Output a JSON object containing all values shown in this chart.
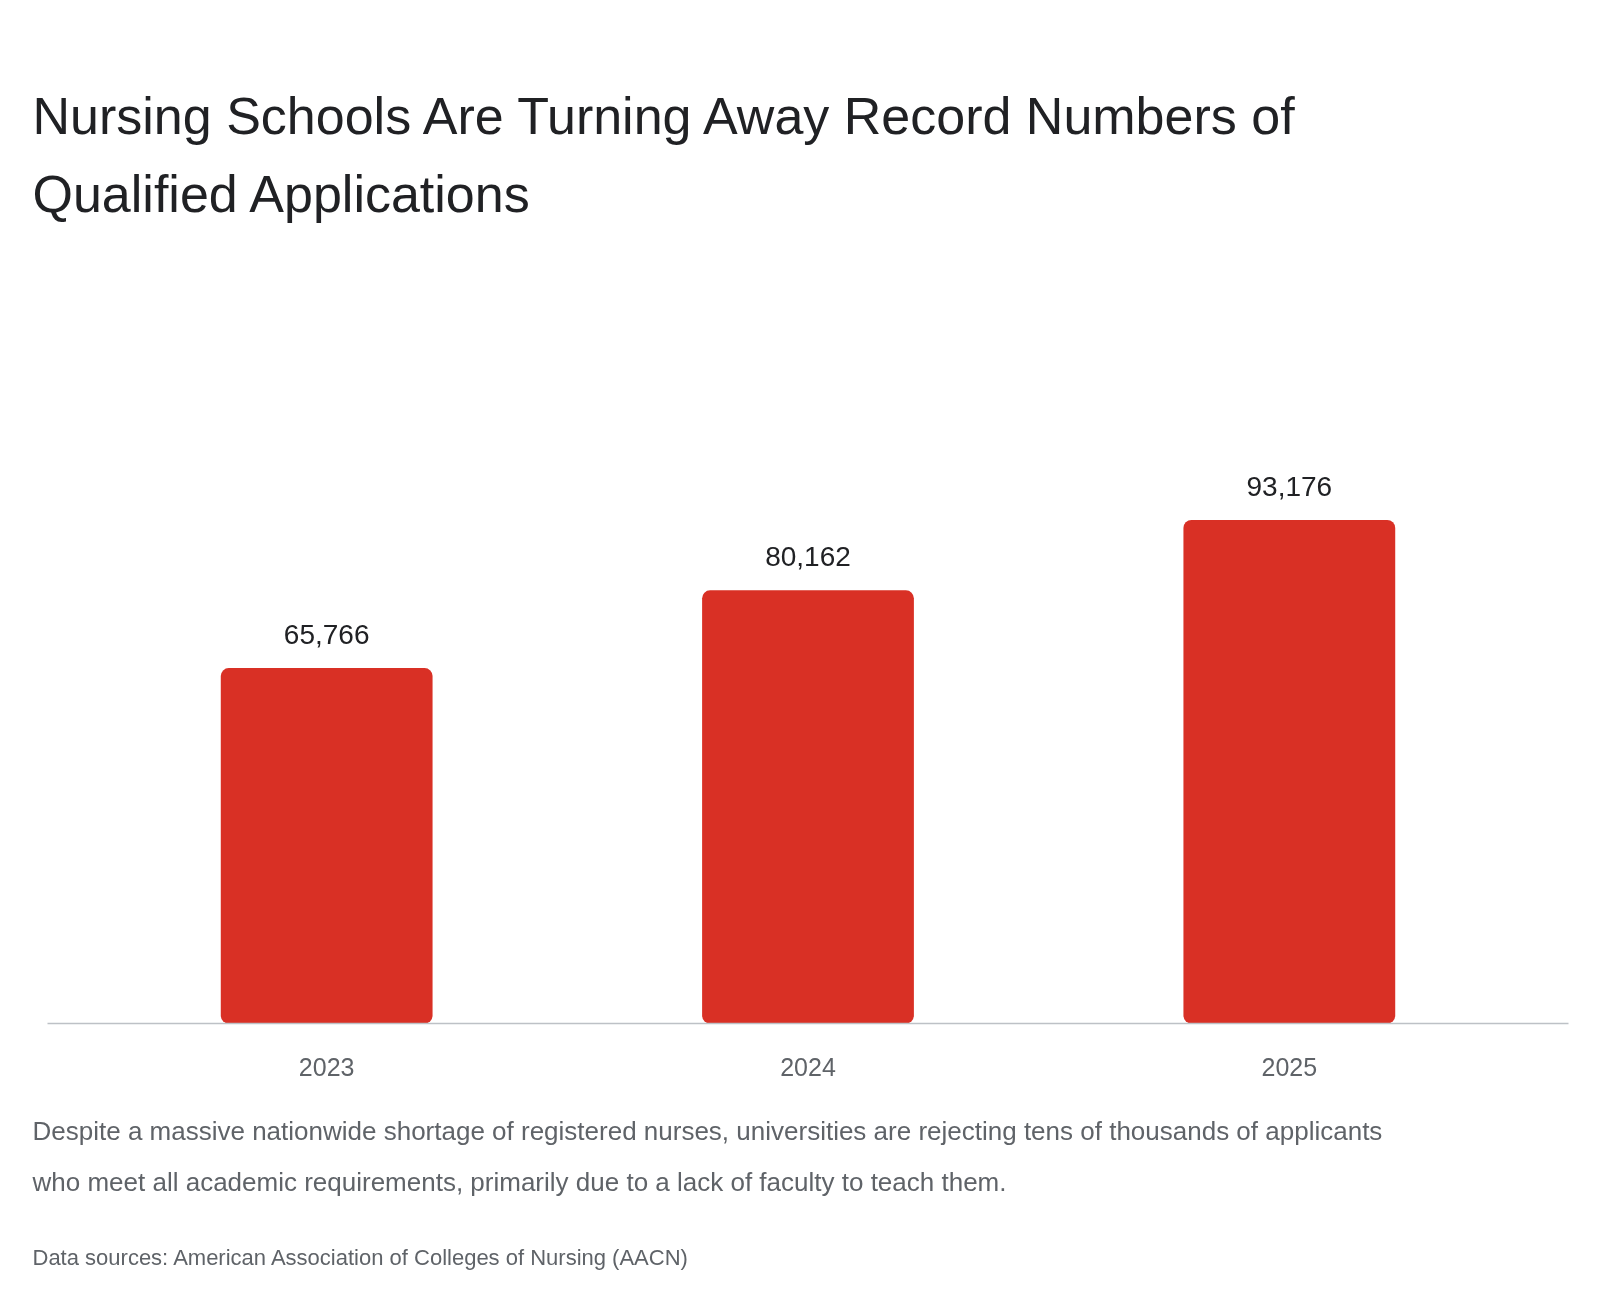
{
  "chart_data": {
    "type": "bar",
    "title": "Nursing Schools Are Turning Away Record Numbers of Qualified Applications",
    "categories": [
      "2023",
      "2024",
      "2025"
    ],
    "values": [
      65766,
      80162,
      93176
    ],
    "value_labels": [
      "65,766",
      "80,162",
      "93,176"
    ],
    "color": "#d93025",
    "grid": false,
    "annotations": [
      "Despite a massive nationwide shortage of registered nurses, universities are rejecting tens of thousands of applicants who meet all academic requirements, primarily due to a lack of faculty to teach them.",
      "Data sources: American Association of Colleges of Nursing (AACN)"
    ]
  }
}
